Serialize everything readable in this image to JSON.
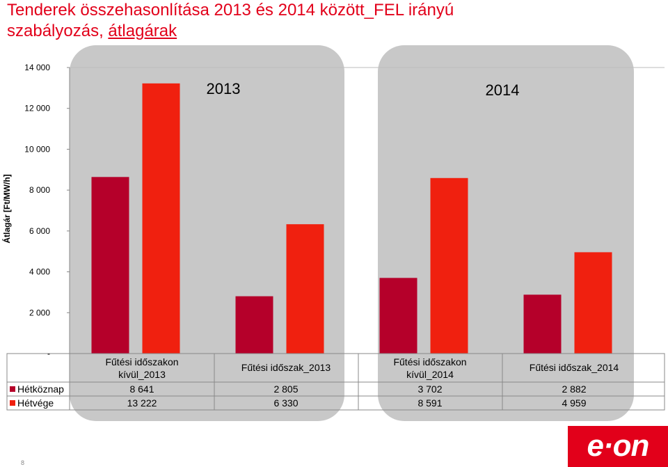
{
  "title": {
    "line1": "Tenderek összehasonlítása 2013 és 2014 között_FEL irányú",
    "line2_prefix": "szabályozás, ",
    "line2_underlined": "átlagárak"
  },
  "logo_text": "e·on",
  "page_number": "8",
  "colors": {
    "weekday": "#b5002a",
    "weekend": "#f0200f",
    "panel": "#c8c8c8",
    "title": "#e2001a"
  },
  "chart_data": {
    "type": "bar",
    "title": "Tenderek összehasonlítása 2013 és 2014 között_FEL irányú szabályozás, átlagárak",
    "ylabel": "Átlagár [Ft/MW/h]",
    "ylim": [
      0,
      14000
    ],
    "yticks": [
      {
        "value": 0,
        "label": "-"
      },
      {
        "value": 2000,
        "label": "2 000"
      },
      {
        "value": 4000,
        "label": "4 000"
      },
      {
        "value": 6000,
        "label": "6 000"
      },
      {
        "value": 8000,
        "label": "8 000"
      },
      {
        "value": 10000,
        "label": "10 000"
      },
      {
        "value": 12000,
        "label": "12 000"
      },
      {
        "value": 14000,
        "label": "14 000"
      }
    ],
    "categories": [
      [
        "Fűtési időszakon",
        "kívül_2013"
      ],
      [
        "Fűtési időszak_2013"
      ],
      [
        "Fűtési időszakon",
        "kívül_2014"
      ],
      [
        "Fűtési időszak_2014"
      ]
    ],
    "series": [
      {
        "name": "Hétköznap",
        "values": [
          8641,
          2805,
          3702,
          2882
        ],
        "display": [
          "8 641",
          "2 805",
          "3 702",
          "2 882"
        ],
        "color": "#b5002a"
      },
      {
        "name": "Hétvége",
        "values": [
          13222,
          6330,
          8591,
          4959
        ],
        "display": [
          "13 222",
          "6 330",
          "8 591",
          "4 959"
        ],
        "color": "#f0200f"
      }
    ],
    "annotations": [
      "2013",
      "2014"
    ],
    "legend": "data-table",
    "grid": false
  }
}
